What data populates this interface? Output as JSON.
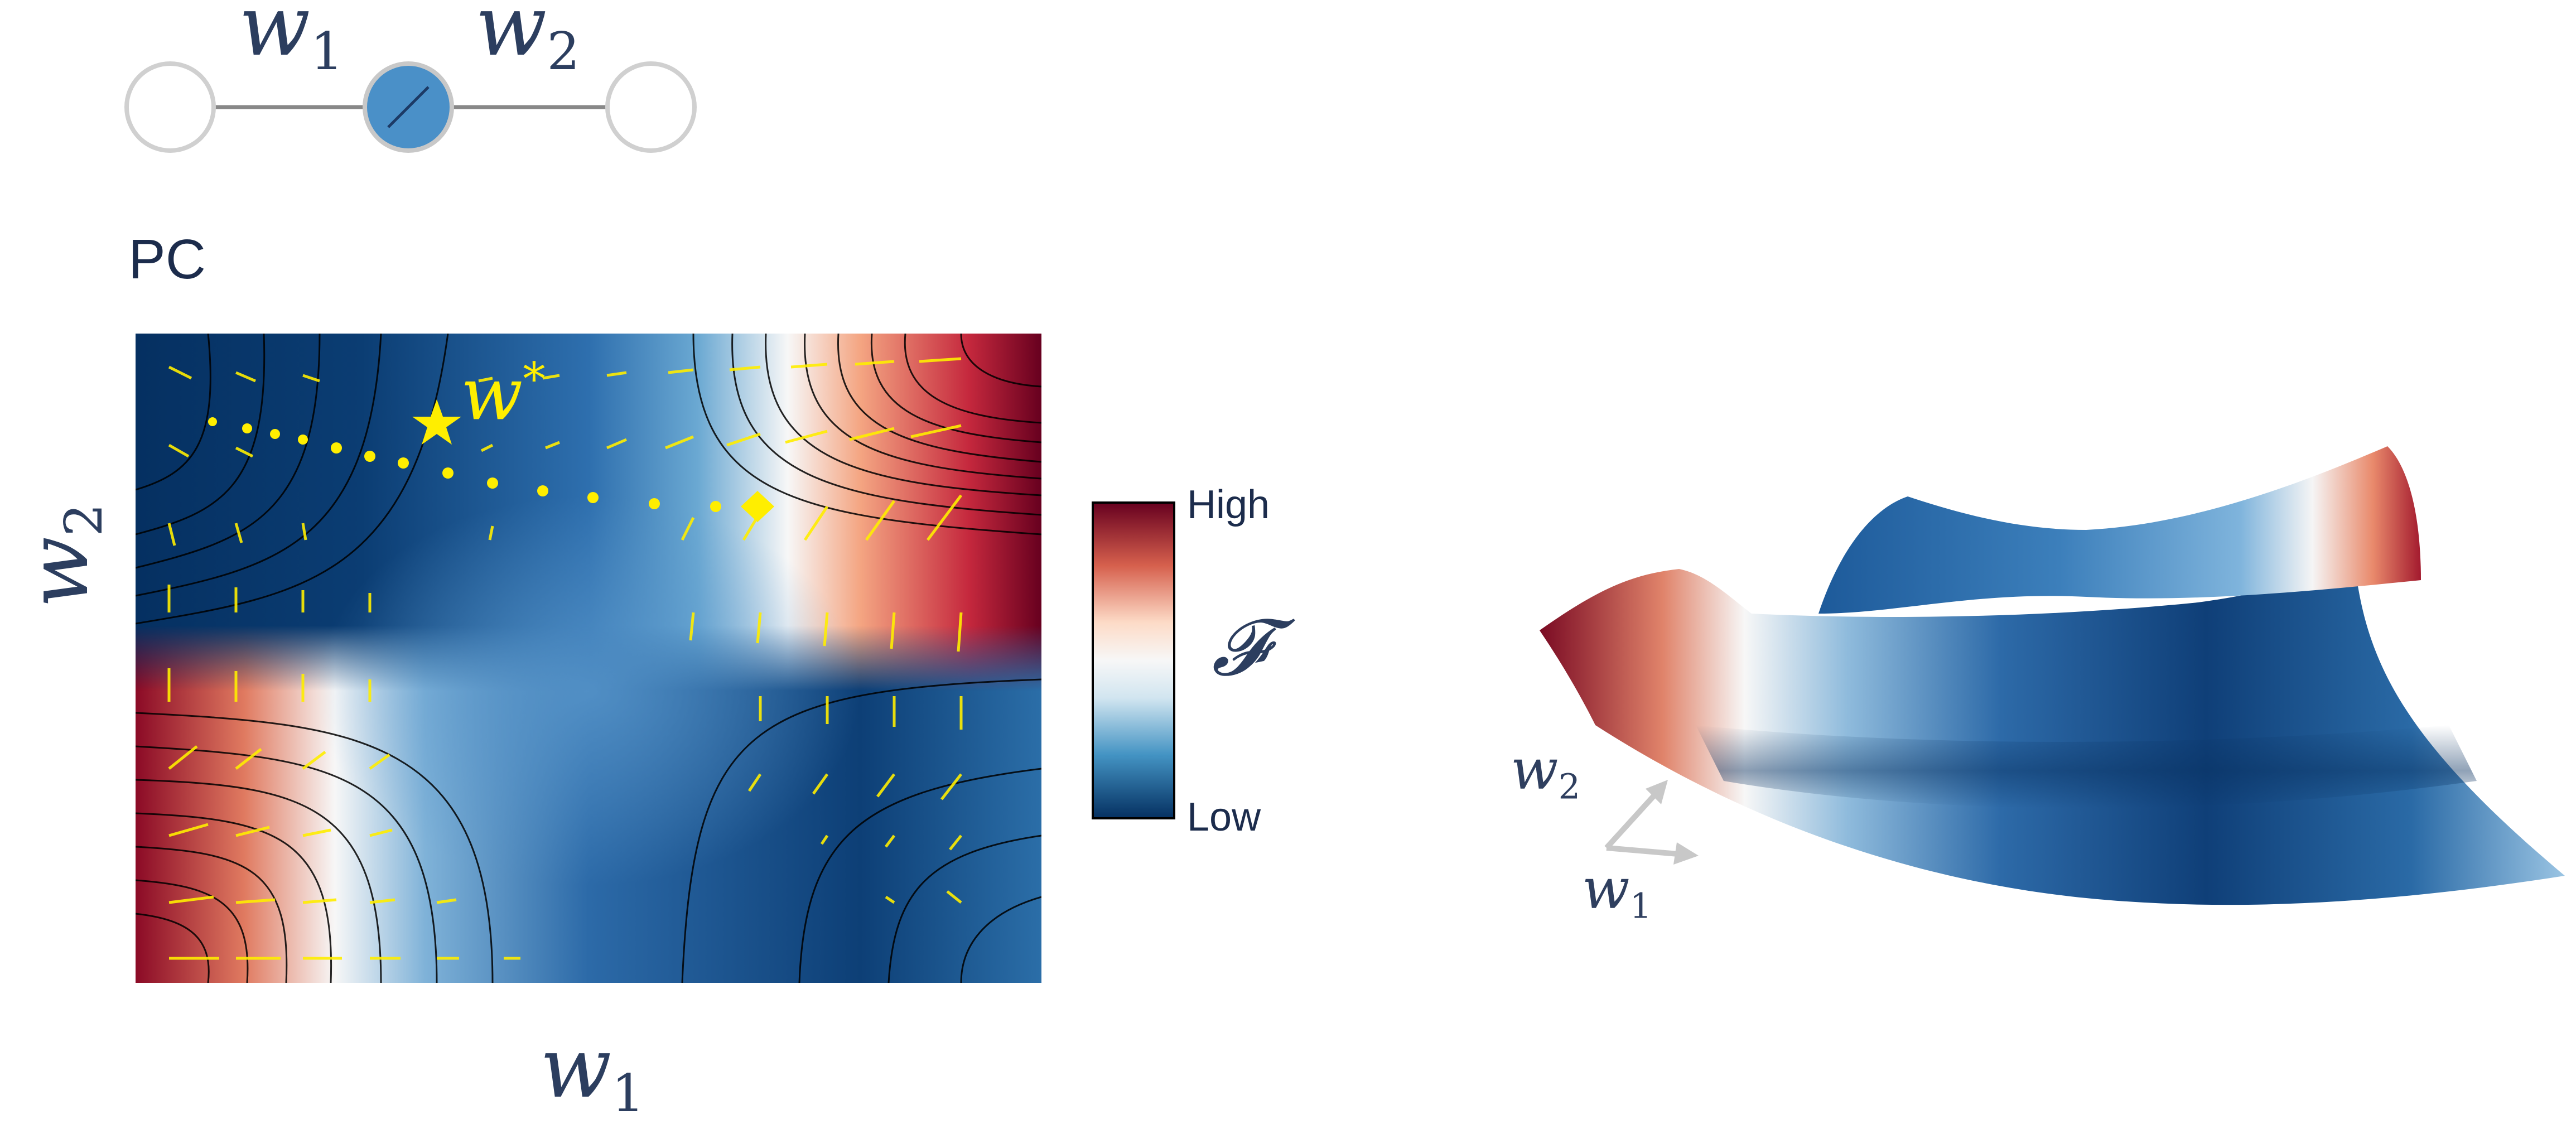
{
  "network": {
    "w1_label": "w",
    "w1_sub": "1",
    "w2_label": "w",
    "w2_sub": "2",
    "node_colors": [
      "#ffffff",
      "#4a90c8",
      "#ffffff"
    ]
  },
  "panel_title": "PC",
  "heatmap": {
    "x_label": "w",
    "x_sub": "1",
    "y_label": "w",
    "y_sub": "2",
    "optimum_label": "w",
    "optimum_sup": "*",
    "trajectory_color": "#ffee00"
  },
  "colorbar": {
    "high": "High",
    "low": "Low",
    "symbol": "𝓕",
    "colors": [
      "#67001f",
      "#d6604d",
      "#fddbc7",
      "#f7f7f7",
      "#d1e5f0",
      "#4393c3",
      "#053061"
    ]
  },
  "surface": {
    "w2_label": "w",
    "w2_sub": "2",
    "w1_label": "w",
    "w1_sub": "1"
  }
}
